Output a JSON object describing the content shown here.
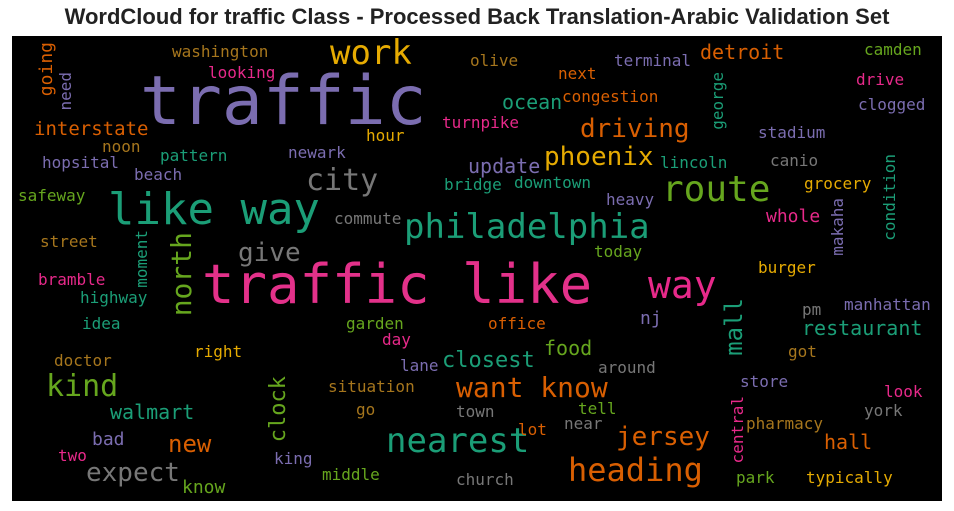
{
  "title": "WordCloud for traffic Class - Processed Back Translation-Arabic Validation Set",
  "words": [
    "traffic",
    "traffic like",
    "like way",
    "work",
    "city",
    "route",
    "philadelphia",
    "way",
    "give",
    "north",
    "nearest",
    "heading",
    "want know",
    "kind",
    "jersey",
    "expect",
    "new",
    "phoenix",
    "driving",
    "update",
    "mall",
    "restaurant",
    "walmart",
    "closest",
    "food",
    "clock",
    "interstate",
    "detroit",
    "ocean",
    "washington",
    "looking",
    "olive",
    "terminal",
    "camden",
    "drive",
    "clogged",
    "going",
    "need",
    "next",
    "congestion",
    "george",
    "turnpike",
    "hour",
    "stadium",
    "noon",
    "newark",
    "hopsital",
    "pattern",
    "lincoln",
    "canio",
    "beach",
    "bridge",
    "downtown",
    "grocery",
    "safeway",
    "heavy",
    "whole",
    "condition",
    "makaha",
    "commute",
    "street",
    "moment",
    "today",
    "burger",
    "bramble",
    "highway",
    "pm",
    "manhattan",
    "idea",
    "garden",
    "office",
    "nj",
    "doctor",
    "right",
    "day",
    "got",
    "lane",
    "around",
    "situation",
    "store",
    "look",
    "go",
    "town",
    "tell",
    "york",
    "bad",
    "lot",
    "near",
    "pharmacy",
    "central",
    "two",
    "king",
    "hall",
    "middle",
    "church",
    "park",
    "typically",
    "know"
  ]
}
